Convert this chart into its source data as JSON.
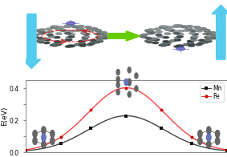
{
  "ylabel": "E(eV)",
  "xlim": [
    -1.0,
    1.0
  ],
  "ylim": [
    0.0,
    0.45
  ],
  "yticks": [
    0.0,
    0.1,
    0.2,
    0.3,
    0.4
  ],
  "ytick_labels": [
    "0.0",
    "",
    "0.2",
    "",
    "0.4"
  ],
  "mn_color": "#444444",
  "fe_color": "#ee4444",
  "mn_marker_color": "#111111",
  "fe_marker_color": "#cc0000",
  "mn_label": "Mn",
  "fe_label": "Fe",
  "mn_peak": 0.225,
  "fe_peak": 0.4,
  "mn_sigma": 0.38,
  "fe_sigma": 0.38,
  "mn_data_x": [
    -1.0,
    -0.65,
    -0.35,
    0.0,
    0.35,
    0.65,
    1.0
  ],
  "fe_data_x": [
    -1.0,
    -0.65,
    -0.35,
    0.0,
    0.35,
    0.65,
    1.0
  ],
  "bg_color": "#ffffff",
  "plot_bg_color": "#ffffff",
  "arrow_color": "#55ccee",
  "green_arrow_color": "#66cc00",
  "fullerene_color": "#888888",
  "fullerene_dark": "#555555",
  "metal_color": "#7777cc",
  "legend_fontsize": 5.5,
  "axis_fontsize": 6.5,
  "tick_fontsize": 5.5
}
